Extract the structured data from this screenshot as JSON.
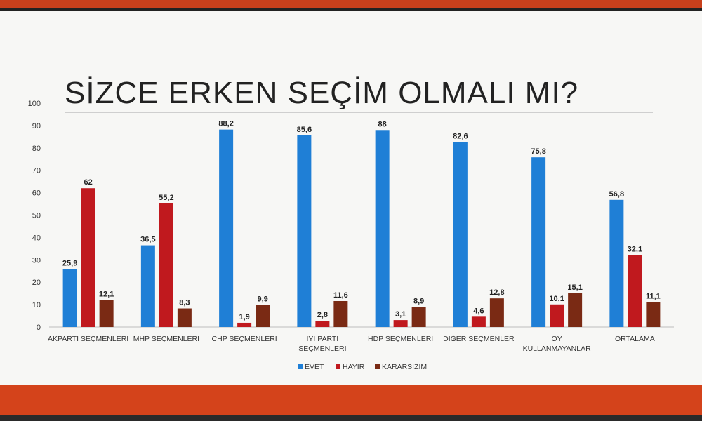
{
  "title": "SİZCE ERKEN SEÇİM OLMALI MI?",
  "colors": {
    "evet": "#1f7fd6",
    "hayir": "#c0191e",
    "kararsizim": "#7a2a14"
  },
  "chart_data": {
    "type": "bar",
    "title": "SİZCE ERKEN SEÇİM OLMALI MI?",
    "ylim": [
      0,
      100
    ],
    "yticks": [
      0,
      10,
      20,
      30,
      40,
      50,
      60,
      70,
      80,
      90,
      100
    ],
    "categories": [
      [
        "AKPARTİ SEÇMENLERİ"
      ],
      [
        "MHP SEÇMENLERİ"
      ],
      [
        "CHP SEÇMENLERİ"
      ],
      [
        "İYİ PARTİ",
        "SEÇMENLERİ"
      ],
      [
        "HDP SEÇMENLERİ"
      ],
      [
        "DİĞER SEÇMENLER"
      ],
      [
        "OY",
        "KULLANMAYANLAR"
      ],
      [
        "ORTALAMA"
      ]
    ],
    "series": [
      {
        "name": "EVET",
        "values": [
          25.9,
          36.5,
          88.2,
          85.6,
          88,
          82.6,
          75.8,
          56.8
        ],
        "labels": [
          "25,9",
          "36,5",
          "88,2",
          "85,6",
          "88",
          "82,6",
          "75,8",
          "56,8"
        ]
      },
      {
        "name": "HAYIR",
        "values": [
          62,
          55.2,
          1.9,
          2.8,
          3.1,
          4.6,
          10.1,
          32.1
        ],
        "labels": [
          "62",
          "55,2",
          "1,9",
          "2,8",
          "3,1",
          "4,6",
          "10,1",
          "32,1"
        ]
      },
      {
        "name": "KARARSIZIM",
        "values": [
          12.1,
          8.3,
          9.9,
          11.6,
          8.9,
          12.8,
          15.1,
          11.1
        ],
        "labels": [
          "12,1",
          "8,3",
          "9,9",
          "11,6",
          "8,9",
          "12,8",
          "15,1",
          "11,1"
        ]
      }
    ],
    "legend_position": "bottom-center",
    "grid": false
  }
}
